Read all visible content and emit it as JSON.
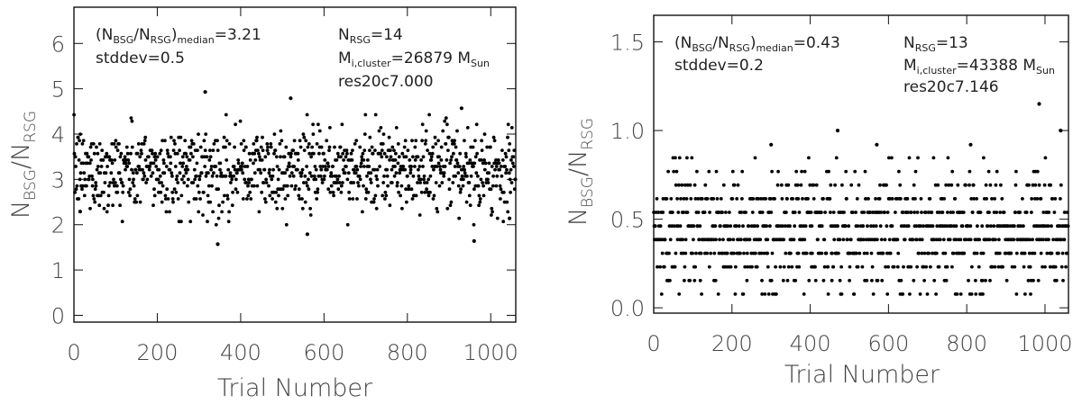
{
  "chart_data": [
    {
      "type": "scatter",
      "xlabel": "Trial Number",
      "ylabel_main": "N",
      "ylabel_sub1": "BSG",
      "ylabel_slash": "/N",
      "ylabel_sub2": "RSG",
      "xlim": [
        0,
        1060
      ],
      "ylim": [
        -0.15,
        6.8
      ],
      "xticks": [
        0,
        200,
        400,
        600,
        800,
        1000
      ],
      "yticks": [
        0,
        1,
        2,
        3,
        4,
        5,
        6
      ],
      "ytick_labels": [
        "0",
        "1",
        "2",
        "3",
        "4",
        "5",
        "6"
      ],
      "annotations": {
        "median_pre": "(N",
        "median_sub1": "BSG",
        "median_mid": "/N",
        "median_sub2": "RSG",
        "median_close": ")",
        "median_sub3": "median",
        "median_val": "=3.21",
        "stddev": "stddev=0.5",
        "nrsg_pre": "N",
        "nrsg_sub": "RSG",
        "nrsg_val": "=14",
        "mi_pre": "M",
        "mi_sub": "i,cluster",
        "mi_val": "=26879 M",
        "mi_sub2": "Sun",
        "model": "res20c7.000"
      },
      "distribution": {
        "n": 1060,
        "median": 3.21,
        "stddev": 0.5,
        "quantum": 0.0714
      },
      "outliers": [
        {
          "x": 315,
          "y": 4.93
        },
        {
          "x": 520,
          "y": 4.79
        },
        {
          "x": 930,
          "y": 4.57
        },
        {
          "x": 345,
          "y": 1.57
        },
        {
          "x": 560,
          "y": 1.79
        },
        {
          "x": 960,
          "y": 1.64
        },
        {
          "x": 15,
          "y": 2.29
        },
        {
          "x": 1045,
          "y": 2.14
        }
      ],
      "grid": false
    },
    {
      "type": "scatter",
      "xlabel": "Trial Number",
      "ylabel_main": "N",
      "ylabel_sub1": "BSG",
      "ylabel_slash": "/N",
      "ylabel_sub2": "RSG",
      "xlim": [
        0,
        1060
      ],
      "ylim": [
        -0.03,
        1.65
      ],
      "xticks": [
        0,
        200,
        400,
        600,
        800,
        1000
      ],
      "yticks": [
        0,
        0.5,
        1.0,
        1.5
      ],
      "ytick_labels": [
        "0.0",
        "0.5",
        "1.0",
        "1.5"
      ],
      "annotations": {
        "median_pre": "(N",
        "median_sub1": "BSG",
        "median_mid": "/N",
        "median_sub2": "RSG",
        "median_close": ")",
        "median_sub3": "median",
        "median_val": "=0.43",
        "stddev": "stddev=0.2",
        "nrsg_pre": "N",
        "nrsg_sub": "RSG",
        "nrsg_val": "=13",
        "mi_pre": "M",
        "mi_sub": "i,cluster",
        "mi_val": "=43388 M",
        "mi_sub2": "Sun",
        "model": "res20c7.146"
      },
      "distribution": {
        "n": 1060,
        "median": 0.43,
        "stddev": 0.2,
        "quantum": 0.0769
      },
      "outliers": [
        {
          "x": 985,
          "y": 1.15
        },
        {
          "x": 470,
          "y": 1.0
        },
        {
          "x": 1040,
          "y": 1.0
        },
        {
          "x": 300,
          "y": 0.92
        },
        {
          "x": 570,
          "y": 0.92
        },
        {
          "x": 810,
          "y": 0.92
        }
      ],
      "grid": false
    }
  ]
}
